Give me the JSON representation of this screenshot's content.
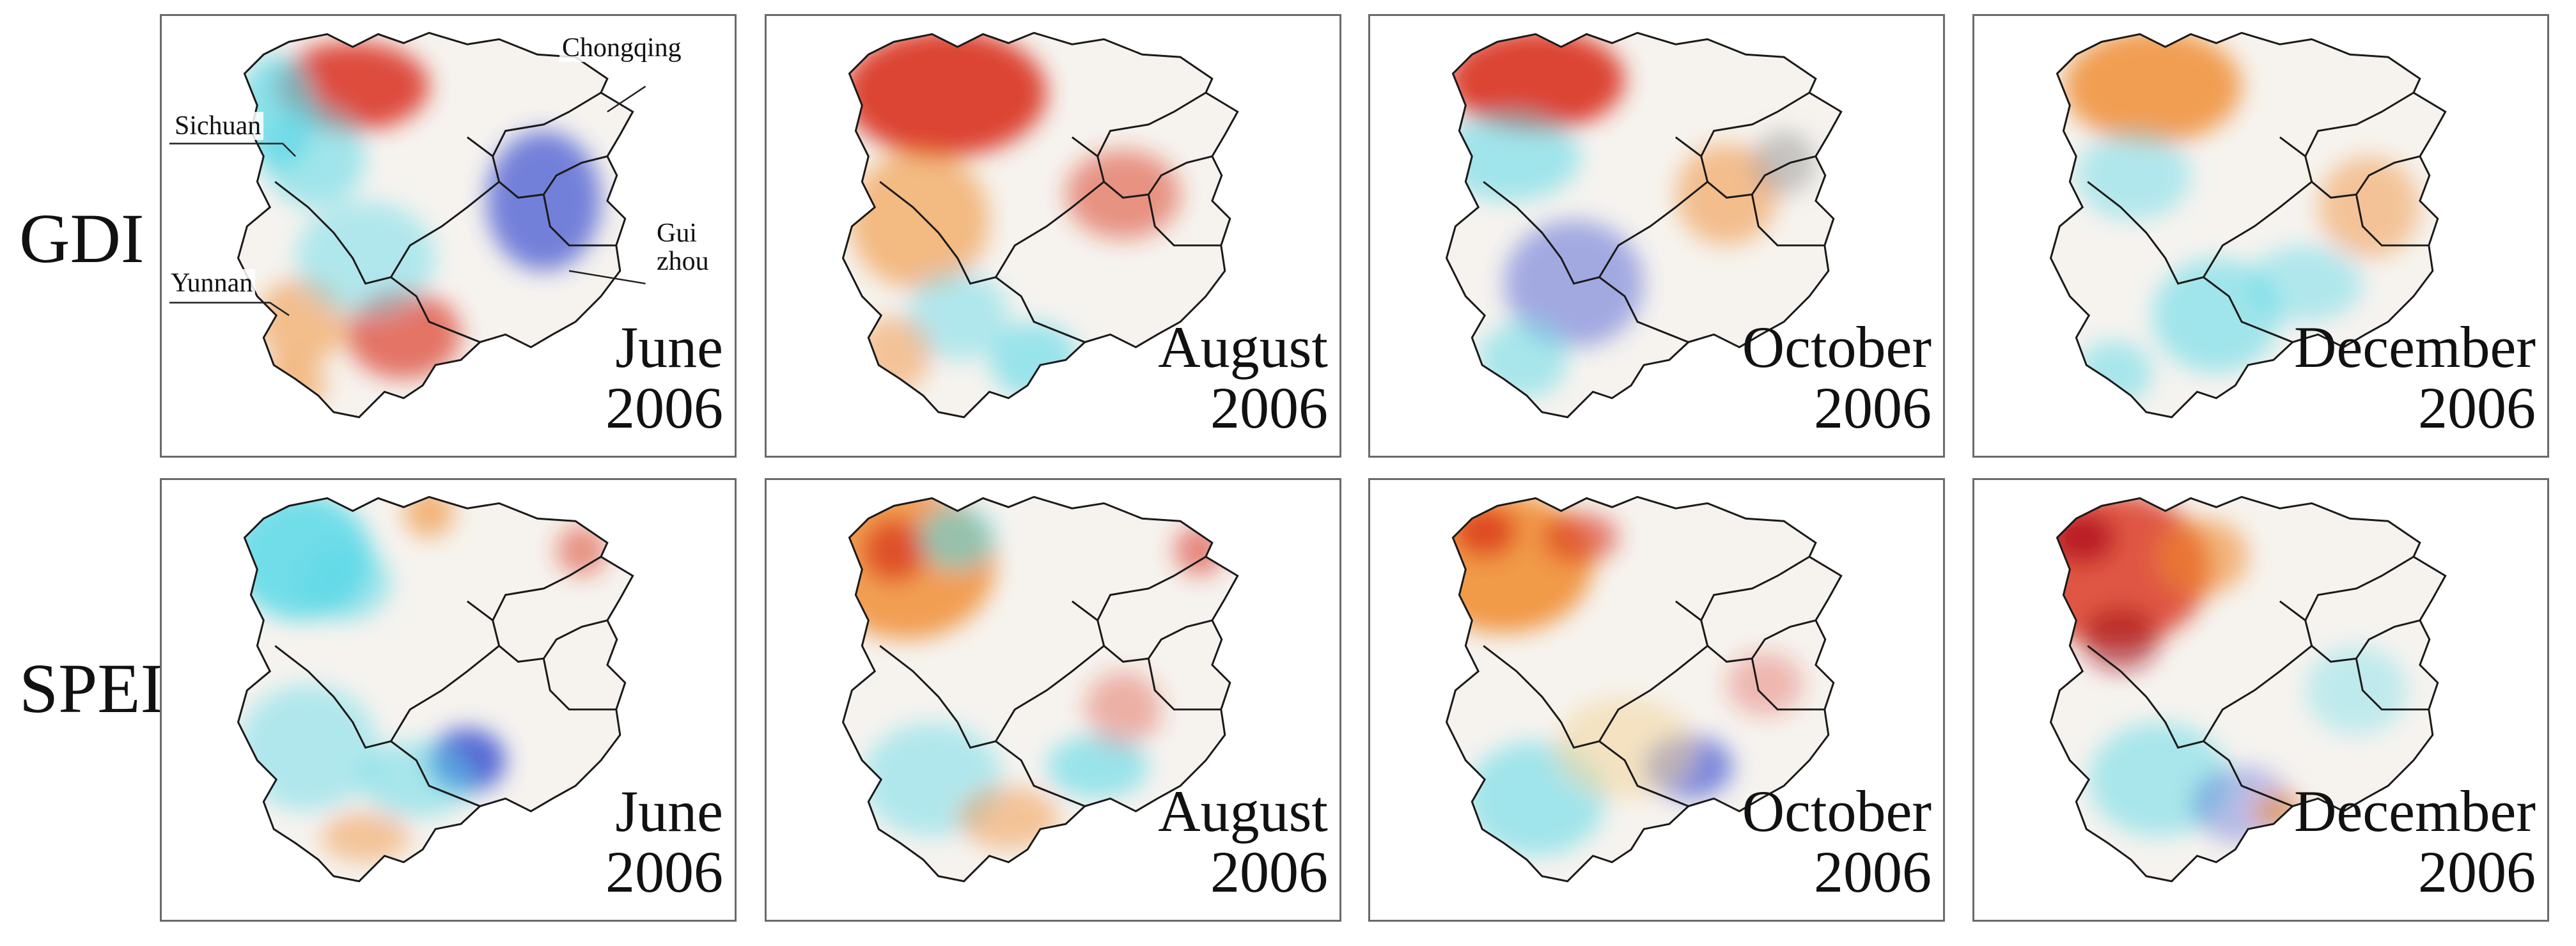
{
  "rows": {
    "gdi_label": "GDI",
    "spei_label": "SPEI"
  },
  "provinces": {
    "sichuan": "Sichuan",
    "chongqing": "Chongqing",
    "yunnan": "Yunnan",
    "guizhou_1": "Gui",
    "guizhou_2": "zhou"
  },
  "panels": {
    "gdi": [
      {
        "month": "June",
        "year": "2006"
      },
      {
        "month": "August",
        "year": "2006"
      },
      {
        "month": "October",
        "year": "2006"
      },
      {
        "month": "December",
        "year": "2006"
      }
    ],
    "spei": [
      {
        "month": "June",
        "year": "2006"
      },
      {
        "month": "August",
        "year": "2006"
      },
      {
        "month": "October",
        "year": "2006"
      },
      {
        "month": "December",
        "year": "2006"
      }
    ]
  },
  "colors": {
    "severe_drought": "#d9301c",
    "moderate_drought": "#f08a2c",
    "normal": "#ffffff",
    "wet": "#5ad9e8",
    "very_wet": "#3b4fd0",
    "boundary": "#1a1a1a",
    "panel_border": "#6a6a6a"
  }
}
